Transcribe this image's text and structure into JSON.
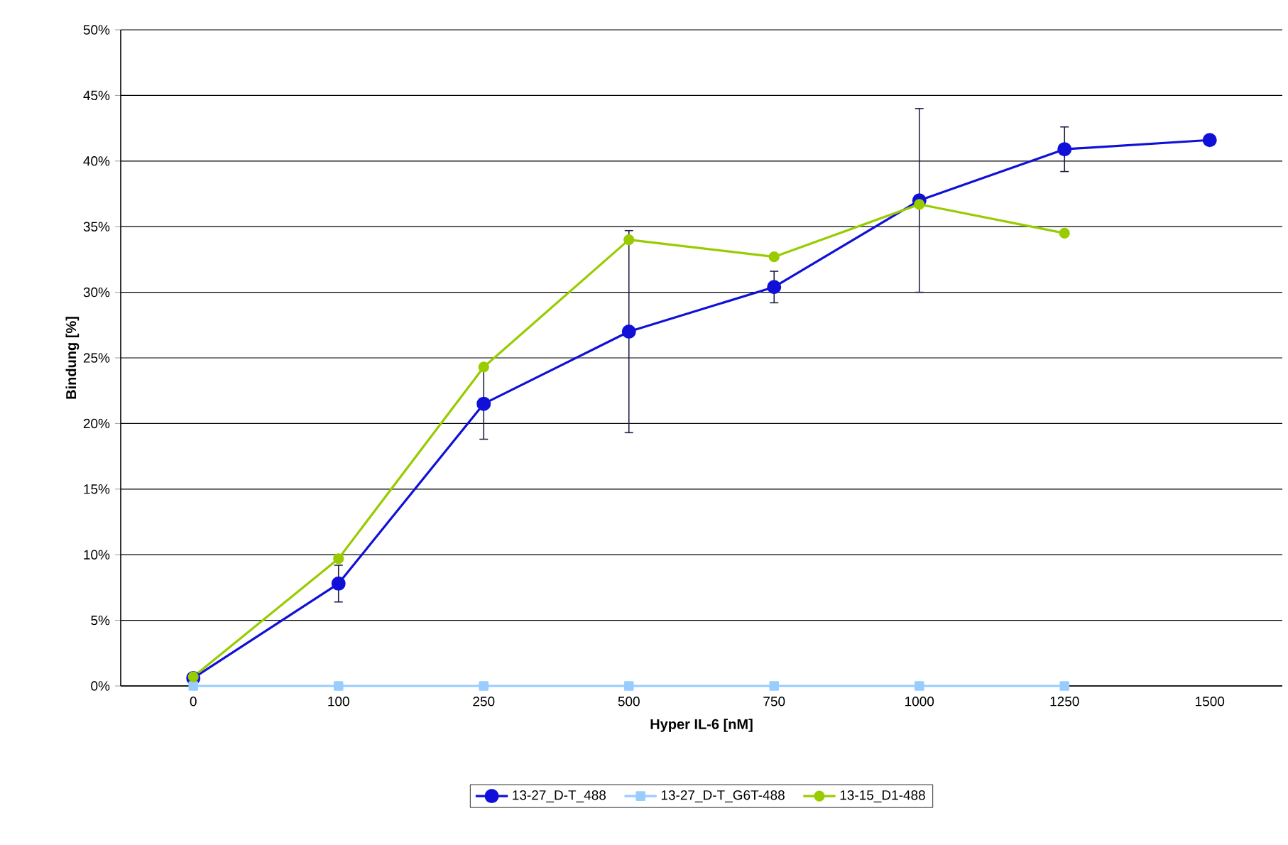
{
  "chart_data": {
    "type": "line",
    "xlabel": "Hyper IL-6 [nM]",
    "ylabel": "Bindung [%]",
    "categories": [
      "0",
      "100",
      "250",
      "500",
      "750",
      "1000",
      "1250",
      "1500"
    ],
    "ylim": [
      0,
      50
    ],
    "yticks": [
      {
        "value": 0,
        "label": "0%"
      },
      {
        "value": 5,
        "label": "5%"
      },
      {
        "value": 10,
        "label": "10%"
      },
      {
        "value": 15,
        "label": "15%"
      },
      {
        "value": 20,
        "label": "20%"
      },
      {
        "value": 25,
        "label": "25%"
      },
      {
        "value": 30,
        "label": "30%"
      },
      {
        "value": 35,
        "label": "35%"
      },
      {
        "value": 40,
        "label": "40%"
      },
      {
        "value": 45,
        "label": "45%"
      },
      {
        "value": 50,
        "label": "50%"
      }
    ],
    "grid": "y",
    "legend": "bottom",
    "series": [
      {
        "name": "13-27_D-T_488",
        "color": "#1010d8",
        "marker": "circle",
        "values": [
          0.6,
          7.8,
          21.5,
          27.0,
          30.4,
          37.0,
          40.9,
          41.6
        ],
        "errors": [
          null,
          1.4,
          2.7,
          7.7,
          1.2,
          7.0,
          1.7,
          null
        ]
      },
      {
        "name": "13-27_D-T_G6T-488",
        "color": "#99ccff",
        "marker": "square",
        "values": [
          0,
          0,
          0,
          0,
          0,
          0,
          0,
          null
        ]
      },
      {
        "name": "13-15_D1-488",
        "color": "#99cc00",
        "marker": "circle",
        "values": [
          0.7,
          9.7,
          24.3,
          34.0,
          32.7,
          36.7,
          34.5,
          null
        ]
      }
    ]
  }
}
